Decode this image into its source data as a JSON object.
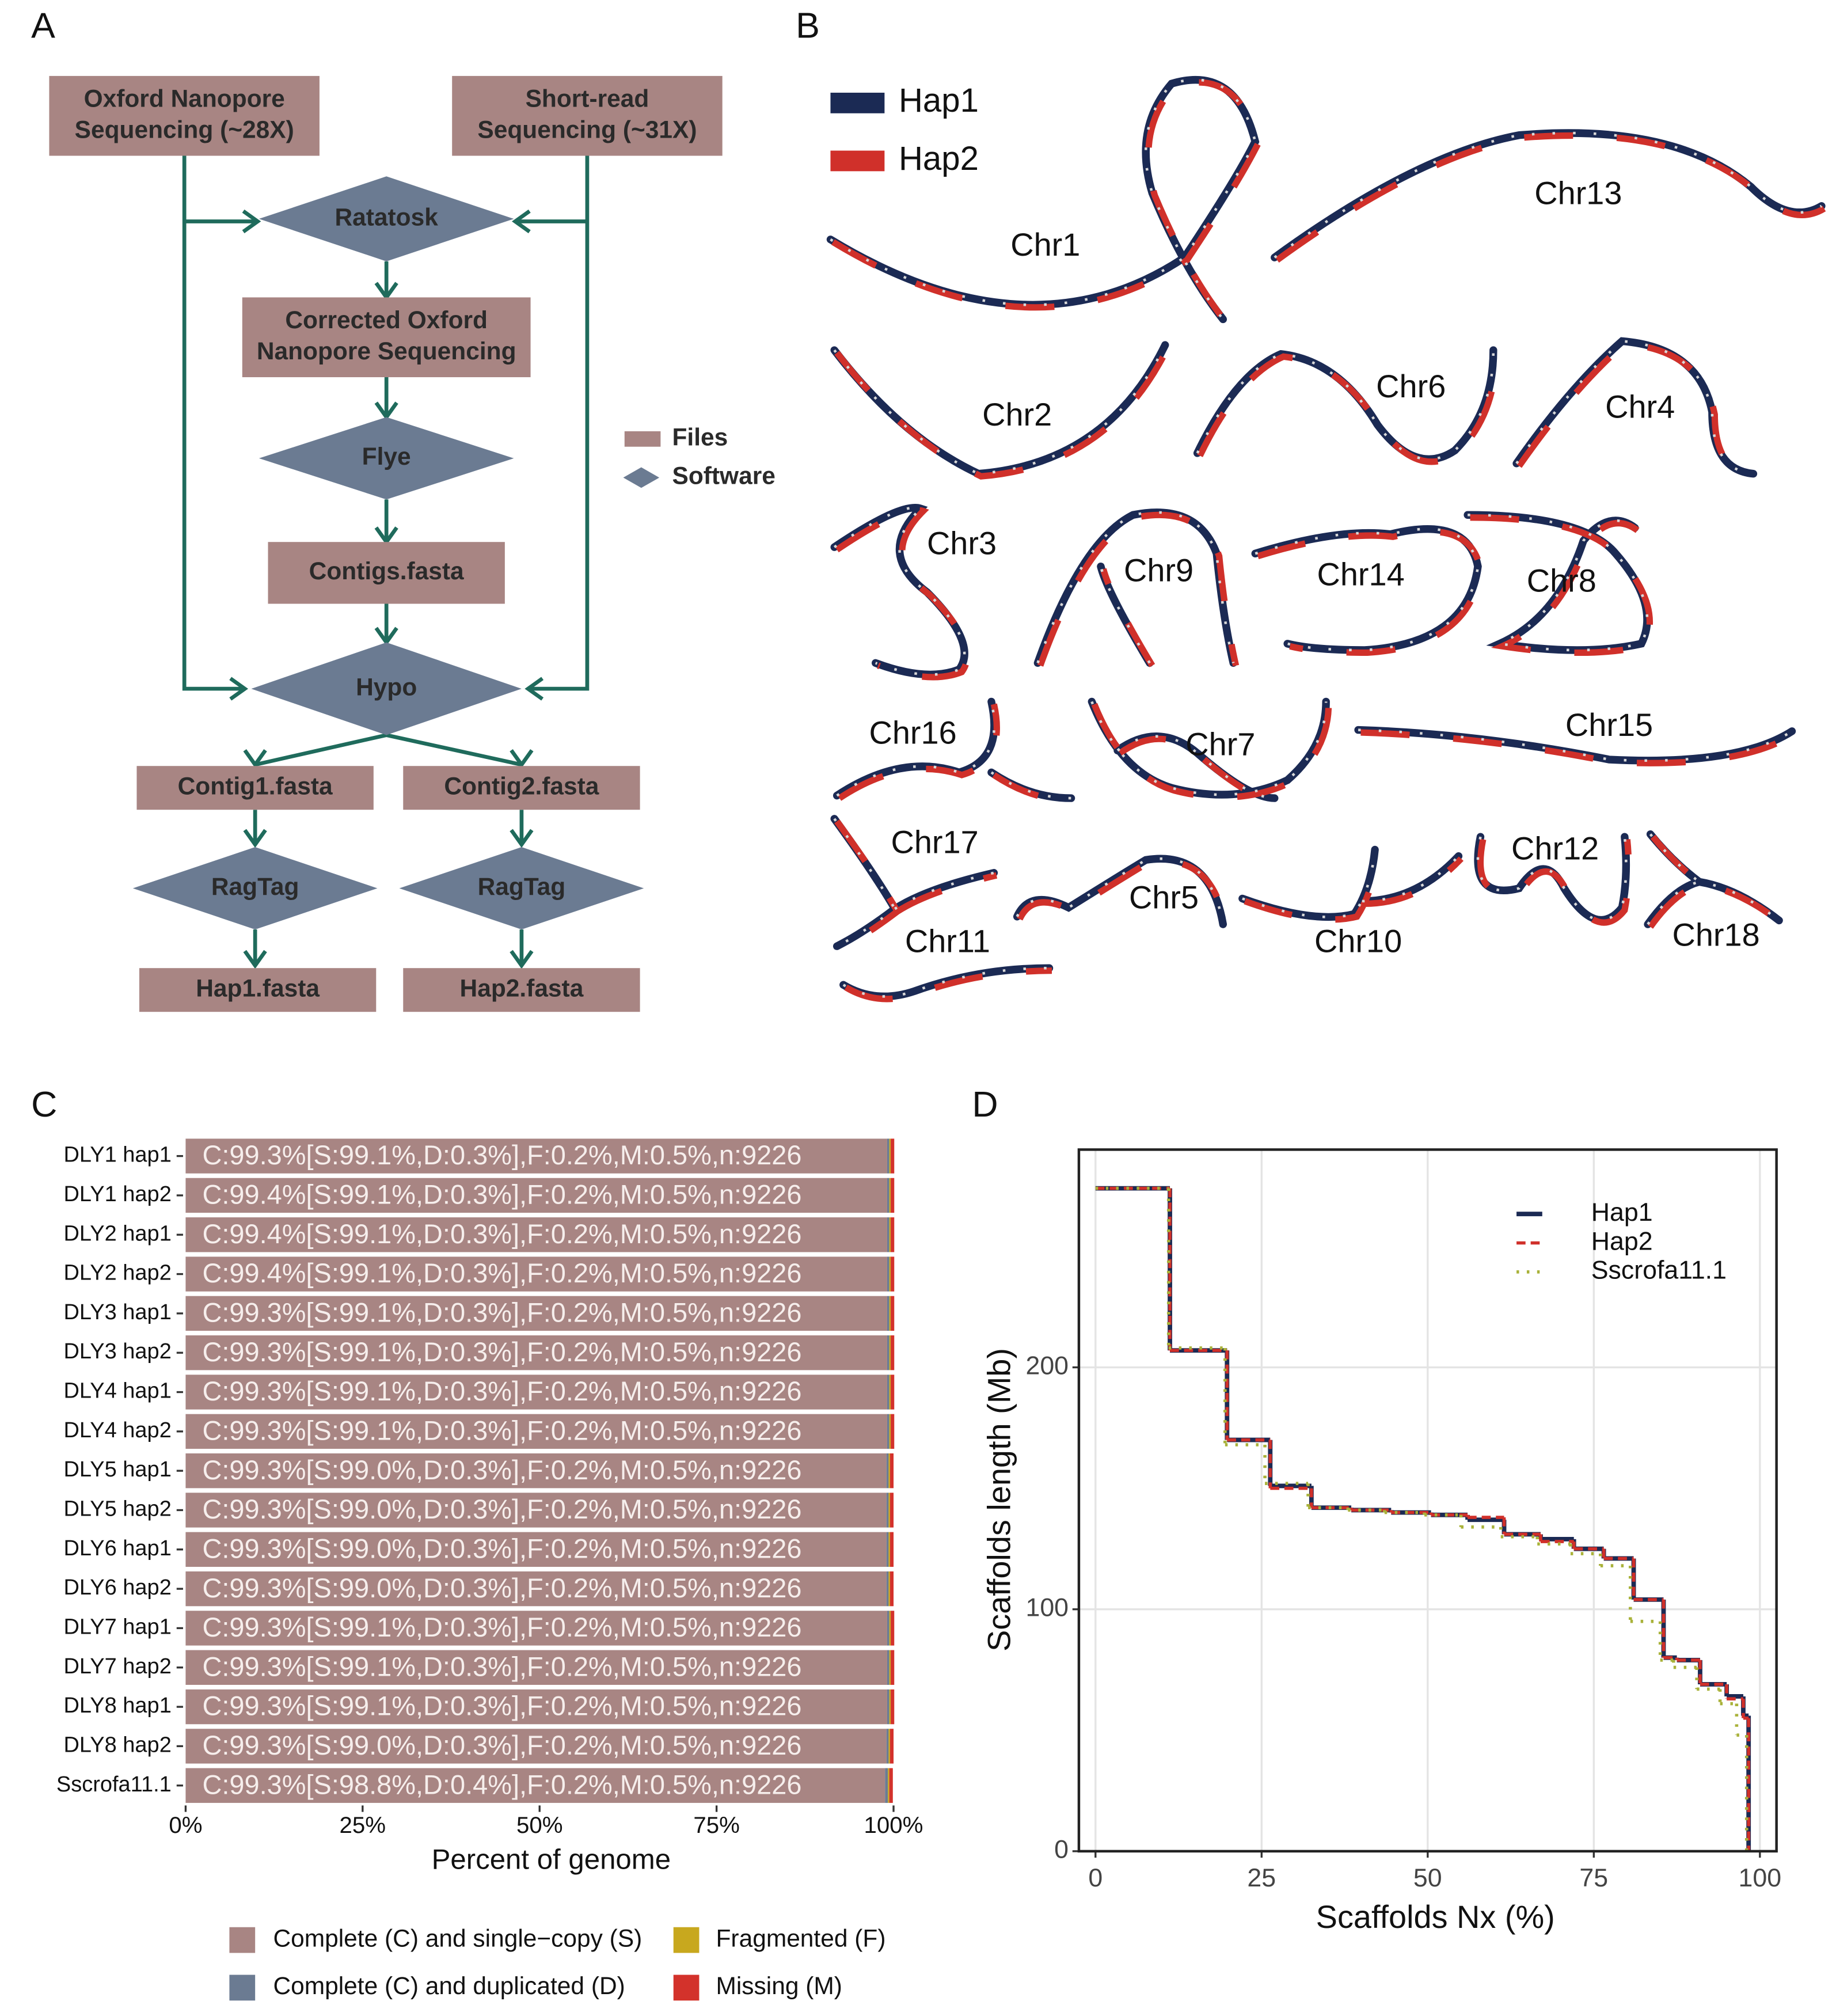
{
  "panel_labels": [
    "A",
    "B",
    "C",
    "D"
  ],
  "flowchart": {
    "colors": {
      "file": "#a88583",
      "software": "#6b7b92",
      "arrow": "#1f6b5c"
    },
    "nodes": [
      {
        "kind": "file",
        "label": [
          "Oxford Nanopore",
          "Sequencing (~28X)"
        ]
      },
      {
        "kind": "file",
        "label": [
          "Short-read",
          "Sequencing (~31X)"
        ]
      },
      {
        "kind": "software",
        "label": [
          "Ratatosk"
        ]
      },
      {
        "kind": "file",
        "label": [
          "Corrected Oxford",
          "Nanopore Sequencing"
        ]
      },
      {
        "kind": "software",
        "label": [
          "Flye"
        ]
      },
      {
        "kind": "file",
        "label": [
          "Contigs.fasta"
        ]
      },
      {
        "kind": "software",
        "label": [
          "Hypo"
        ]
      },
      {
        "kind": "file",
        "label": [
          "Contig1.fasta"
        ]
      },
      {
        "kind": "file",
        "label": [
          "Contig2.fasta"
        ]
      },
      {
        "kind": "software",
        "label": [
          "RagTag"
        ]
      },
      {
        "kind": "software",
        "label": [
          "RagTag"
        ]
      },
      {
        "kind": "file",
        "label": [
          "Hap1.fasta"
        ]
      },
      {
        "kind": "file",
        "label": [
          "Hap2.fasta"
        ]
      }
    ],
    "legend": [
      {
        "kind": "file",
        "label": "Files"
      },
      {
        "kind": "software",
        "label": "Software"
      }
    ]
  },
  "haplotype_panel": {
    "legend": [
      {
        "name": "Hap1",
        "color": "#1b2a54"
      },
      {
        "name": "Hap2",
        "color": "#d0302a"
      }
    ],
    "chromosomes": [
      "Chr1",
      "Chr13",
      "Chr2",
      "Chr6",
      "Chr4",
      "Chr3",
      "Chr9",
      "Chr14",
      "Chr8",
      "Chr16",
      "Chr7",
      "Chr15",
      "Chr17",
      "Chr12",
      "Chr5",
      "Chr11",
      "Chr10",
      "Chr18"
    ]
  },
  "chart_data": [
    {
      "type": "bar",
      "orientation": "horizontal",
      "stacked": true,
      "categories": [
        "DLY1 hap1",
        "DLY1 hap2",
        "DLY2 hap1",
        "DLY2 hap2",
        "DLY3 hap1",
        "DLY3 hap2",
        "DLY4 hap1",
        "DLY4 hap2",
        "DLY5 hap1",
        "DLY5 hap2",
        "DLY6 hap1",
        "DLY6 hap2",
        "DLY7 hap1",
        "DLY7 hap2",
        "DLY8 hap1",
        "DLY8 hap2",
        "Sscrofa11.1"
      ],
      "series": [
        {
          "name": "Complete (C) and single−copy (S)",
          "color": "#a88583",
          "values": [
            99.1,
            99.1,
            99.1,
            99.1,
            99.1,
            99.1,
            99.1,
            99.1,
            99.0,
            99.0,
            99.0,
            99.0,
            99.1,
            99.1,
            99.1,
            99.0,
            98.8
          ]
        },
        {
          "name": "Complete (C) and duplicated (D)",
          "color": "#6b7b92",
          "values": [
            0.3,
            0.3,
            0.3,
            0.3,
            0.3,
            0.3,
            0.3,
            0.3,
            0.3,
            0.3,
            0.3,
            0.3,
            0.3,
            0.3,
            0.3,
            0.3,
            0.4
          ]
        },
        {
          "name": "Fragmented (F)",
          "color": "#c8a81e",
          "values": [
            0.2,
            0.2,
            0.2,
            0.2,
            0.2,
            0.2,
            0.2,
            0.2,
            0.2,
            0.2,
            0.2,
            0.2,
            0.2,
            0.2,
            0.2,
            0.2,
            0.2
          ]
        },
        {
          "name": "Missing (M)",
          "color": "#d3322b",
          "values": [
            0.5,
            0.5,
            0.5,
            0.5,
            0.5,
            0.5,
            0.5,
            0.5,
            0.5,
            0.5,
            0.5,
            0.5,
            0.5,
            0.5,
            0.5,
            0.5,
            0.5
          ]
        }
      ],
      "bar_labels": [
        "C:99.3%[S:99.1%,D:0.3%],F:0.2%,M:0.5%,n:9226",
        "C:99.4%[S:99.1%,D:0.3%],F:0.2%,M:0.5%,n:9226",
        "C:99.4%[S:99.1%,D:0.3%],F:0.2%,M:0.5%,n:9226",
        "C:99.4%[S:99.1%,D:0.3%],F:0.2%,M:0.5%,n:9226",
        "C:99.3%[S:99.1%,D:0.3%],F:0.2%,M:0.5%,n:9226",
        "C:99.3%[S:99.1%,D:0.3%],F:0.2%,M:0.5%,n:9226",
        "C:99.3%[S:99.1%,D:0.3%],F:0.2%,M:0.5%,n:9226",
        "C:99.3%[S:99.1%,D:0.3%],F:0.2%,M:0.5%,n:9226",
        "C:99.3%[S:99.0%,D:0.3%],F:0.2%,M:0.5%,n:9226",
        "C:99.3%[S:99.0%,D:0.3%],F:0.2%,M:0.5%,n:9226",
        "C:99.3%[S:99.0%,D:0.3%],F:0.2%,M:0.5%,n:9226",
        "C:99.3%[S:99.0%,D:0.3%],F:0.2%,M:0.5%,n:9226",
        "C:99.3%[S:99.1%,D:0.3%],F:0.2%,M:0.5%,n:9226",
        "C:99.3%[S:99.1%,D:0.3%],F:0.2%,M:0.5%,n:9226",
        "C:99.3%[S:99.1%,D:0.3%],F:0.2%,M:0.5%,n:9226",
        "C:99.3%[S:99.0%,D:0.3%],F:0.2%,M:0.5%,n:9226",
        "C:99.3%[S:98.8%,D:0.4%],F:0.2%,M:0.5%,n:9226"
      ],
      "xlim": [
        0,
        100
      ],
      "xticks": [
        {
          "value": 0,
          "label": "0%"
        },
        {
          "value": 25,
          "label": "25%"
        },
        {
          "value": 50,
          "label": "50%"
        },
        {
          "value": 75,
          "label": "75%"
        },
        {
          "value": 100,
          "label": "100%"
        }
      ],
      "xlabel": "Percent of genome"
    },
    {
      "type": "line",
      "step": true,
      "xlabel": "Scaffolds Nx (%)",
      "ylabel": "Scaffolds length (Mb)",
      "xlim": [
        -2.5,
        102.5
      ],
      "ylim": [
        0,
        290
      ],
      "xticks": [
        0,
        25,
        50,
        75,
        100
      ],
      "yticks": [
        0,
        100,
        200
      ],
      "grid": true,
      "legend": "top-right",
      "series": [
        {
          "name": "Hap1",
          "color": "#1b2a54",
          "linestyle": "solid",
          "x": [
            0,
            11.2,
            19.8,
            26.3,
            32.5,
            38.5,
            44.5,
            50.5,
            56,
            61.5,
            67,
            72,
            76.5,
            81,
            85.5,
            87.5,
            91,
            95,
            97.5,
            98.3
          ],
          "values": [
            274,
            207,
            170,
            151,
            142,
            141,
            140,
            139,
            137,
            131,
            129,
            125,
            121,
            104,
            80,
            79,
            69,
            64,
            56,
            0
          ]
        },
        {
          "name": "Hap2",
          "color": "#d0302a",
          "linestyle": "dashed",
          "x": [
            0,
            11.2,
            19.8,
            26.3,
            32.5,
            38.5,
            44.5,
            50.5,
            56,
            61.5,
            67,
            72,
            76.5,
            81,
            85.5,
            87.5,
            91,
            95,
            97.5,
            98.3
          ],
          "values": [
            274,
            207,
            170,
            150,
            142,
            141,
            140,
            139,
            138,
            131,
            128,
            125,
            121,
            104,
            80,
            79,
            69,
            63,
            55,
            0
          ]
        },
        {
          "name": "Sscrofa11.1",
          "color": "#a9b23a",
          "linestyle": "dotted",
          "x": [
            0,
            11,
            19.5,
            25.5,
            32,
            38,
            43.5,
            49.5,
            55,
            61,
            66.5,
            71.5,
            76,
            80.5,
            85,
            87,
            90.5,
            94,
            96.5,
            98
          ],
          "values": [
            274,
            208,
            168,
            152,
            142,
            141,
            140,
            139,
            134,
            130,
            127,
            123,
            118,
            95,
            79,
            76,
            67,
            61,
            48,
            0
          ]
        }
      ]
    }
  ]
}
